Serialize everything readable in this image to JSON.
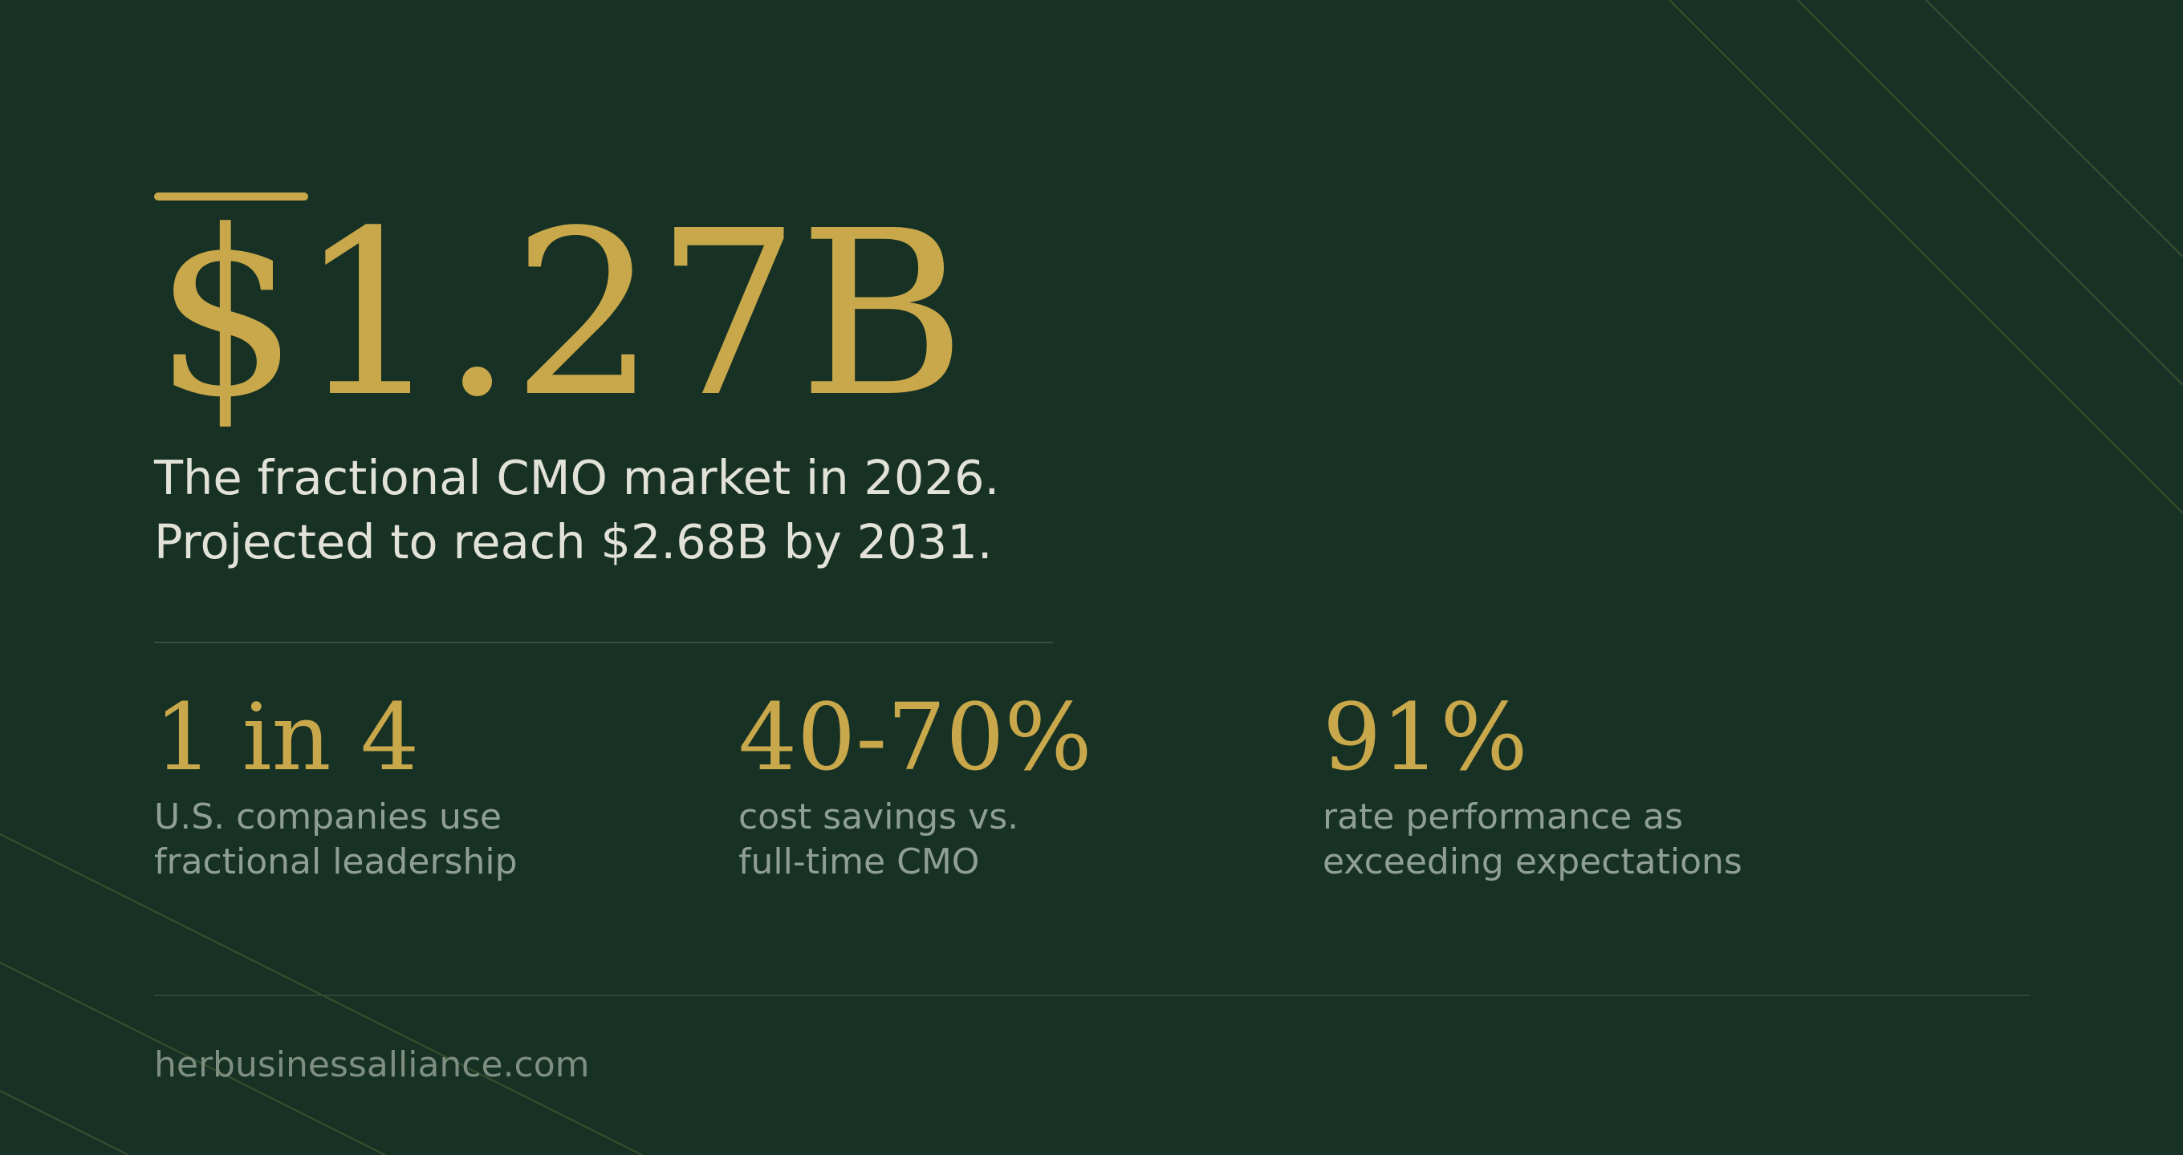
{
  "headline": {
    "value": "$1.27B"
  },
  "subtext": {
    "line1": "The fractional CMO market in 2026.",
    "line2": "Projected to reach $2.68B by 2031."
  },
  "stats": [
    {
      "value": "1 in 4",
      "label_line1": "U.S. companies use",
      "label_line2": "fractional leadership"
    },
    {
      "value": "40-70%",
      "label_line1": "cost savings vs.",
      "label_line2": "full-time CMO"
    },
    {
      "value": "91%",
      "label_line1": "rate performance as",
      "label_line2": "exceeding expectations"
    }
  ],
  "footer": {
    "url": "herbusinessalliance.com"
  },
  "colors": {
    "background": "#173124",
    "accent_gold": "#c8a84b",
    "primary_text": "#e2e2d9",
    "muted_text": "#8f9f93"
  }
}
